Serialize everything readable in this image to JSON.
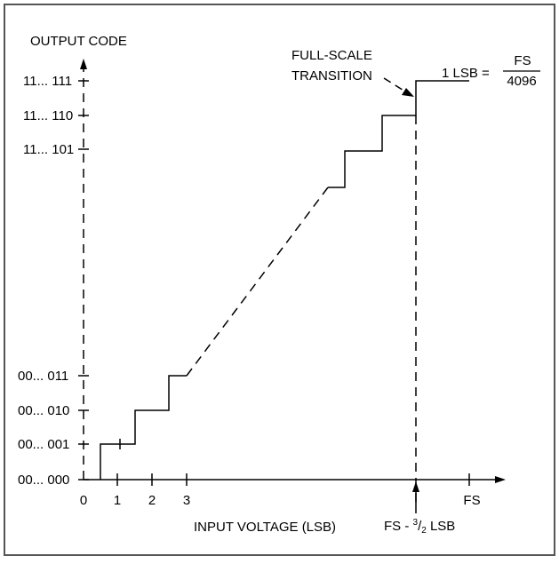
{
  "diagram": {
    "y_axis_title": "OUTPUT CODE",
    "x_axis_title": "INPUT VOLTAGE (LSB)",
    "y_codes": [
      "00... 000",
      "00... 001",
      "00... 010",
      "00... 011",
      "11... 101",
      "11... 110",
      "11... 111"
    ],
    "x_ticks": [
      "0",
      "1",
      "2",
      "3",
      "FS"
    ],
    "full_scale_label_line1": "FULL-SCALE",
    "full_scale_label_line2": "TRANSITION",
    "lsb_equation_lhs": "1 LSB =",
    "lsb_numerator": "FS",
    "lsb_denominator": "4096",
    "fs_marker_prefix": "FS - ",
    "fs_marker_numerator": "3",
    "fs_marker_denominator": "2",
    "fs_marker_suffix": " LSB",
    "colors": {
      "line": "#000000",
      "frame": "#555555",
      "background": "#ffffff"
    }
  }
}
